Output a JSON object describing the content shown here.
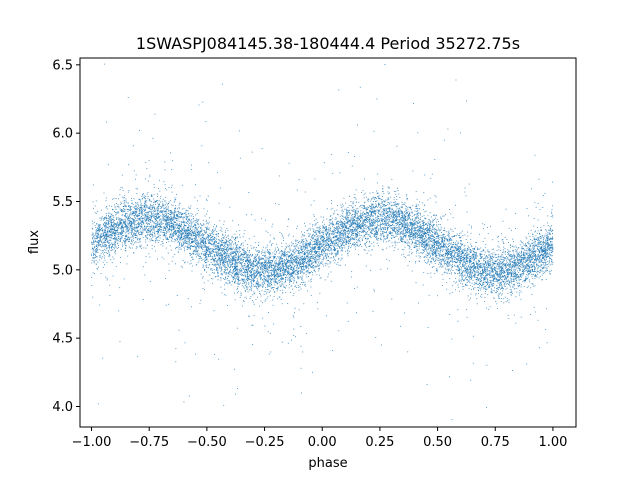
{
  "chart_data": {
    "type": "scatter",
    "title": "1SWASPJ084145.38-180444.4 Period 35272.75s",
    "xlabel": "phase",
    "ylabel": "flux",
    "xlim": [
      -1.05,
      1.1
    ],
    "ylim": [
      3.85,
      6.55
    ],
    "xticks": [
      -1.0,
      -0.75,
      -0.5,
      -0.25,
      0.0,
      0.25,
      0.5,
      0.75,
      1.0
    ],
    "xtick_labels": [
      "−1.00",
      "−0.75",
      "−0.50",
      "−0.25",
      "0.00",
      "0.25",
      "0.50",
      "0.75",
      "1.00"
    ],
    "yticks": [
      4.0,
      4.5,
      5.0,
      5.5,
      6.0,
      6.5
    ],
    "ytick_labels": [
      "4.0",
      "4.5",
      "5.0",
      "5.5",
      "6.0",
      "6.5"
    ],
    "grid": false,
    "legend": null,
    "marker_color": "#1f77b4",
    "phase_range": [
      -1.0,
      1.0
    ],
    "sinusoid_mean_flux": 5.18,
    "sinusoid_amplitude": 0.19,
    "sinusoid_period_phase": 1.0,
    "flux_peak_phase": 0.25,
    "flux_trough_phase": -0.25,
    "estimated_point_count": 12000
  }
}
